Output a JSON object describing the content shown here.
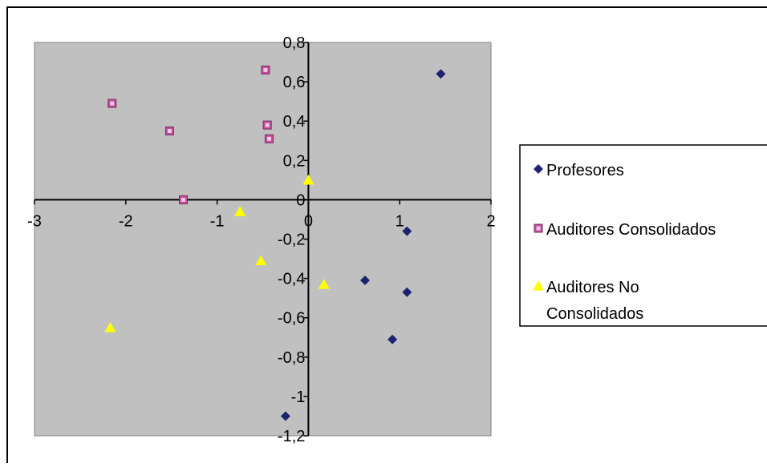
{
  "colors": {
    "plot_background": "#c0c0c0",
    "axis": "#000000",
    "Profesores": "#1f2270",
    "Auditores Consolidados": "#c0509a",
    "Auditores No Consolidados": "#ffff00"
  },
  "chart_data": {
    "type": "scatter",
    "title": "",
    "xlabel": "",
    "ylabel": "",
    "xlim": [
      -3,
      2
    ],
    "ylim": [
      -1.2,
      0.8
    ],
    "grid": false,
    "legend_position": "right",
    "x_ticks": [
      {
        "value": -3,
        "label": "-3"
      },
      {
        "value": -2,
        "label": "-2"
      },
      {
        "value": -1,
        "label": "-1"
      },
      {
        "value": 0,
        "label": "0"
      },
      {
        "value": 1,
        "label": "1"
      },
      {
        "value": 2,
        "label": "2"
      }
    ],
    "y_ticks": [
      {
        "value": 0.8,
        "label": "0,8"
      },
      {
        "value": 0.6,
        "label": "0,6"
      },
      {
        "value": 0.4,
        "label": "0,4"
      },
      {
        "value": 0.2,
        "label": "0,2"
      },
      {
        "value": 0,
        "label": "0"
      },
      {
        "value": -0.2,
        "label": "-0,2"
      },
      {
        "value": -0.4,
        "label": "-0,4"
      },
      {
        "value": -0.6,
        "label": "-0,6"
      },
      {
        "value": -0.8,
        "label": "-0,8"
      },
      {
        "value": -1,
        "label": "-1"
      },
      {
        "value": -1.2,
        "label": "-1,2"
      }
    ],
    "series": [
      {
        "name": "Profesores",
        "marker": "diamond",
        "legend_label_lines": [
          "Profesores"
        ],
        "points": [
          {
            "x": 1.45,
            "y": 0.64
          },
          {
            "x": 1.08,
            "y": -0.16
          },
          {
            "x": 0.62,
            "y": -0.41
          },
          {
            "x": 1.08,
            "y": -0.47
          },
          {
            "x": 0.92,
            "y": -0.71
          },
          {
            "x": -0.25,
            "y": -1.1
          }
        ]
      },
      {
        "name": "Auditores Consolidados",
        "marker": "square",
        "legend_label_lines": [
          "Auditores Consolidados"
        ],
        "points": [
          {
            "x": -0.47,
            "y": 0.66
          },
          {
            "x": -2.15,
            "y": 0.49
          },
          {
            "x": -1.52,
            "y": 0.35
          },
          {
            "x": -0.45,
            "y": 0.38
          },
          {
            "x": -0.43,
            "y": 0.31
          },
          {
            "x": -1.37,
            "y": 0.0
          }
        ]
      },
      {
        "name": "Auditores No Consolidados",
        "marker": "triangle",
        "legend_label_lines": [
          "Auditores No",
          "Consolidados"
        ],
        "points": [
          {
            "x": 0.0,
            "y": 0.1
          },
          {
            "x": -0.75,
            "y": -0.06
          },
          {
            "x": -0.52,
            "y": -0.31
          },
          {
            "x": 0.17,
            "y": -0.43
          },
          {
            "x": -2.17,
            "y": -0.65
          }
        ]
      }
    ]
  }
}
